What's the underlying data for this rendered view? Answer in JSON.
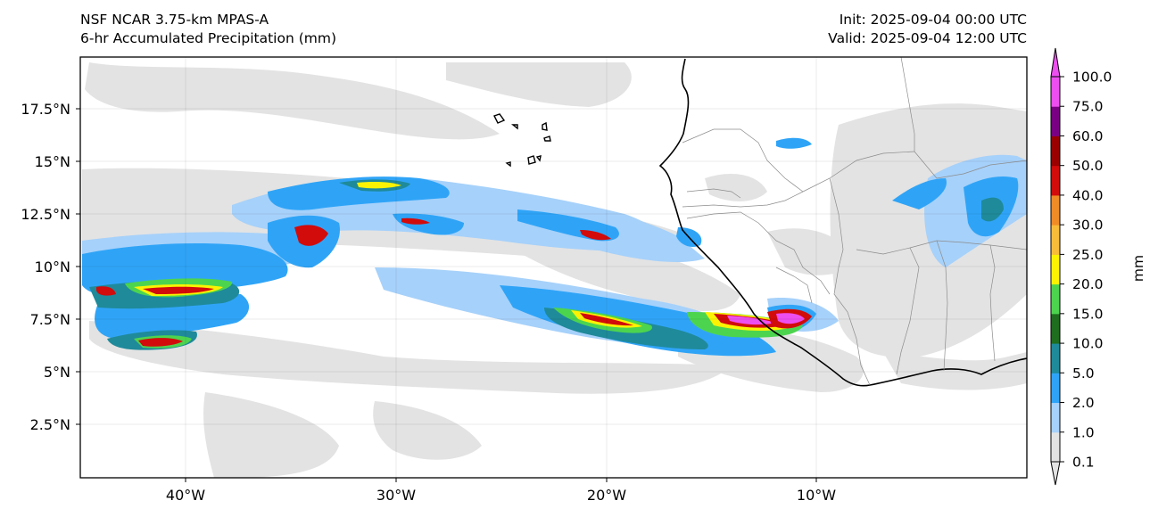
{
  "title": {
    "model": "NSF NCAR 3.75-km MPAS-A",
    "product": "6-hr Accumulated Precipitation (mm)",
    "init": "Init: 2025-09-04 00:00 UTC",
    "valid": "Valid: 2025-09-04 12:00 UTC"
  },
  "axes": {
    "x_ticks": [
      "40°W",
      "30°W",
      "20°W",
      "10°W"
    ],
    "y_ticks": [
      "17.5°N",
      "15°N",
      "12.5°N",
      "10°N",
      "7.5°N",
      "5°N",
      "2.5°N"
    ]
  },
  "colorbar": {
    "unit_label": "mm",
    "levels": [
      "0.1",
      "1.0",
      "2.0",
      "5.0",
      "10.0",
      "15.0",
      "20.0",
      "25.0",
      "30.0",
      "40.0",
      "50.0",
      "60.0",
      "75.0",
      "100.0"
    ],
    "colors": [
      "#e3e3e3",
      "#a6d1fa",
      "#2fa4f7",
      "#1f8a9a",
      "#1f6d1e",
      "#4dd44f",
      "#fbf302",
      "#f6bc3a",
      "#ef8c26",
      "#d20b0b",
      "#9a0000",
      "#7a0083",
      "#ed4ef0"
    ],
    "extend": "both"
  },
  "colors": {
    "ocean_background": "#ffffff",
    "trace_rain": "#e3e3e3",
    "coastline": "#000000",
    "borders": "#8c8c8c"
  }
}
